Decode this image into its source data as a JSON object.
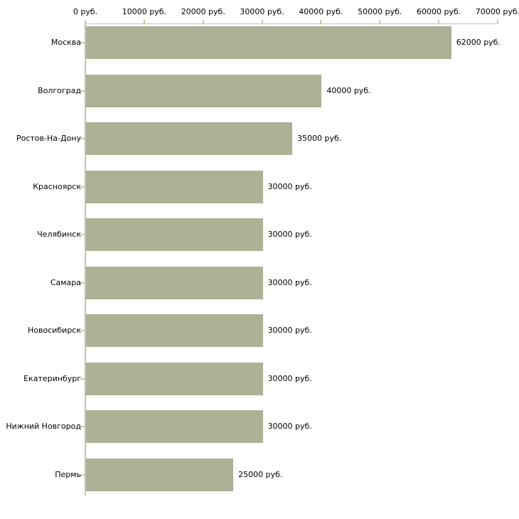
{
  "page": {
    "background": "#ffffff"
  },
  "chart_data": {
    "type": "bar",
    "orientation": "horizontal",
    "title": "",
    "categories": [
      "Москва",
      "Волгоград",
      "Ростов-На-Дону",
      "Красноярск",
      "Челябинск",
      "Самара",
      "Новосибирск",
      "Екатеринбург",
      "Нижний Новгород",
      "Пермь"
    ],
    "values": [
      62000,
      40000,
      35000,
      30000,
      30000,
      30000,
      30000,
      30000,
      30000,
      25000
    ],
    "value_labels": [
      "62000 руб.",
      "40000 руб.",
      "35000 руб.",
      "30000 руб.",
      "30000 руб.",
      "30000 руб.",
      "30000 руб.",
      "30000 руб.",
      "30000 руб.",
      "25000 руб."
    ],
    "unit": "руб.",
    "x_axis": {
      "position": "top",
      "min": 0,
      "max": 70000,
      "tick_step": 10000,
      "tick_labels": [
        "0 руб.",
        "10000 руб.",
        "20000 руб.",
        "30000 руб.",
        "40000 руб.",
        "50000 руб.",
        "60000 руб.",
        "70000 руб."
      ]
    },
    "y_axis": {
      "label": ""
    },
    "grid": "off",
    "legend": "none",
    "colors": {
      "bar": "#abb295",
      "axis_line": "#c0c0c0",
      "tick_mark": "#c9c99c",
      "text": "#000000",
      "background": "#ffffff"
    }
  }
}
